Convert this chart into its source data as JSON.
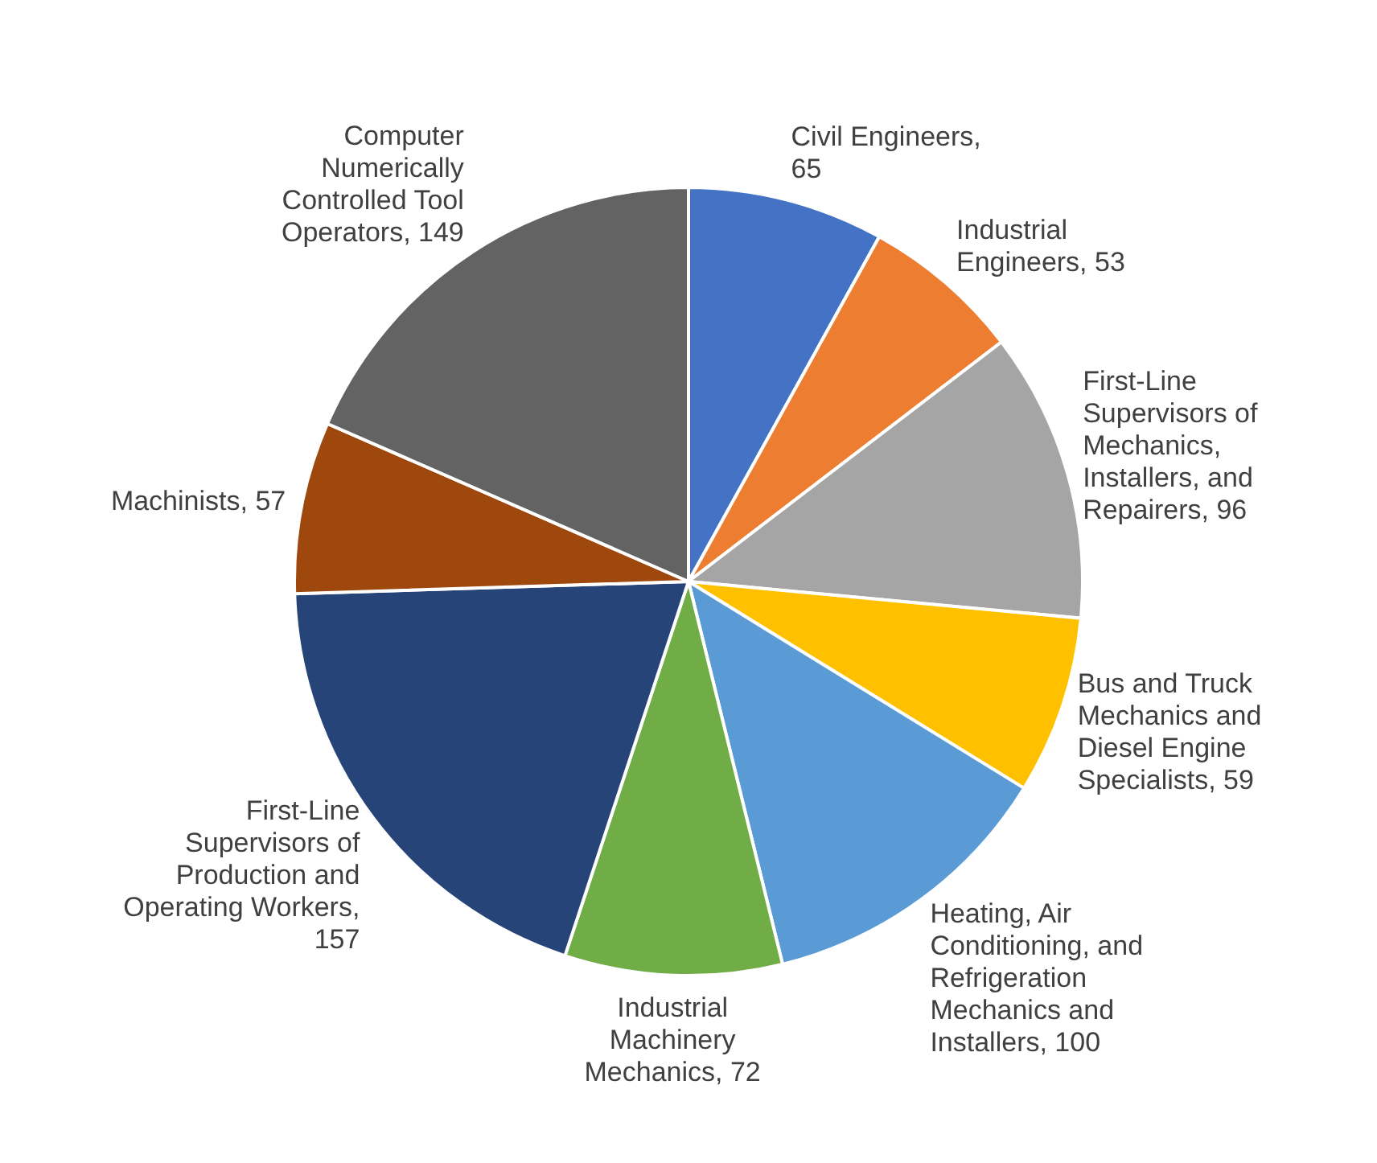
{
  "chart_data": {
    "type": "pie",
    "categories": [
      null,
      null,
      null,
      null,
      null,
      null,
      null,
      null,
      null
    ],
    "values": [
      65,
      53,
      96,
      59,
      100,
      72,
      157,
      57,
      149
    ],
    "colors": [
      "#4472c4",
      "#ed7d31",
      "#a5a5a5",
      "#ffc000",
      "#5b9bd5",
      "#70ad47",
      "#264478",
      "#9e480e",
      "#636363"
    ],
    "value_labels": [
      "Civil Engineers, 65",
      "Industrial Engineers, 53",
      "First-Line Supervisors of Mechanics, Installers, and Repairers, 96",
      "Bus and Truck Mechanics and Diesel Engine Specialists, 59",
      "Heating, Air Conditioning, and Refrigeration Mechanics and Installers, 100",
      "Industrial Machinery Mechanics, 72",
      "First-Line Supervisors of Production and Operating Workers, 157",
      "Machinists, 57",
      "Computer Numerically Controlled Tool Operators, 149"
    ],
    "legend": false
  }
}
